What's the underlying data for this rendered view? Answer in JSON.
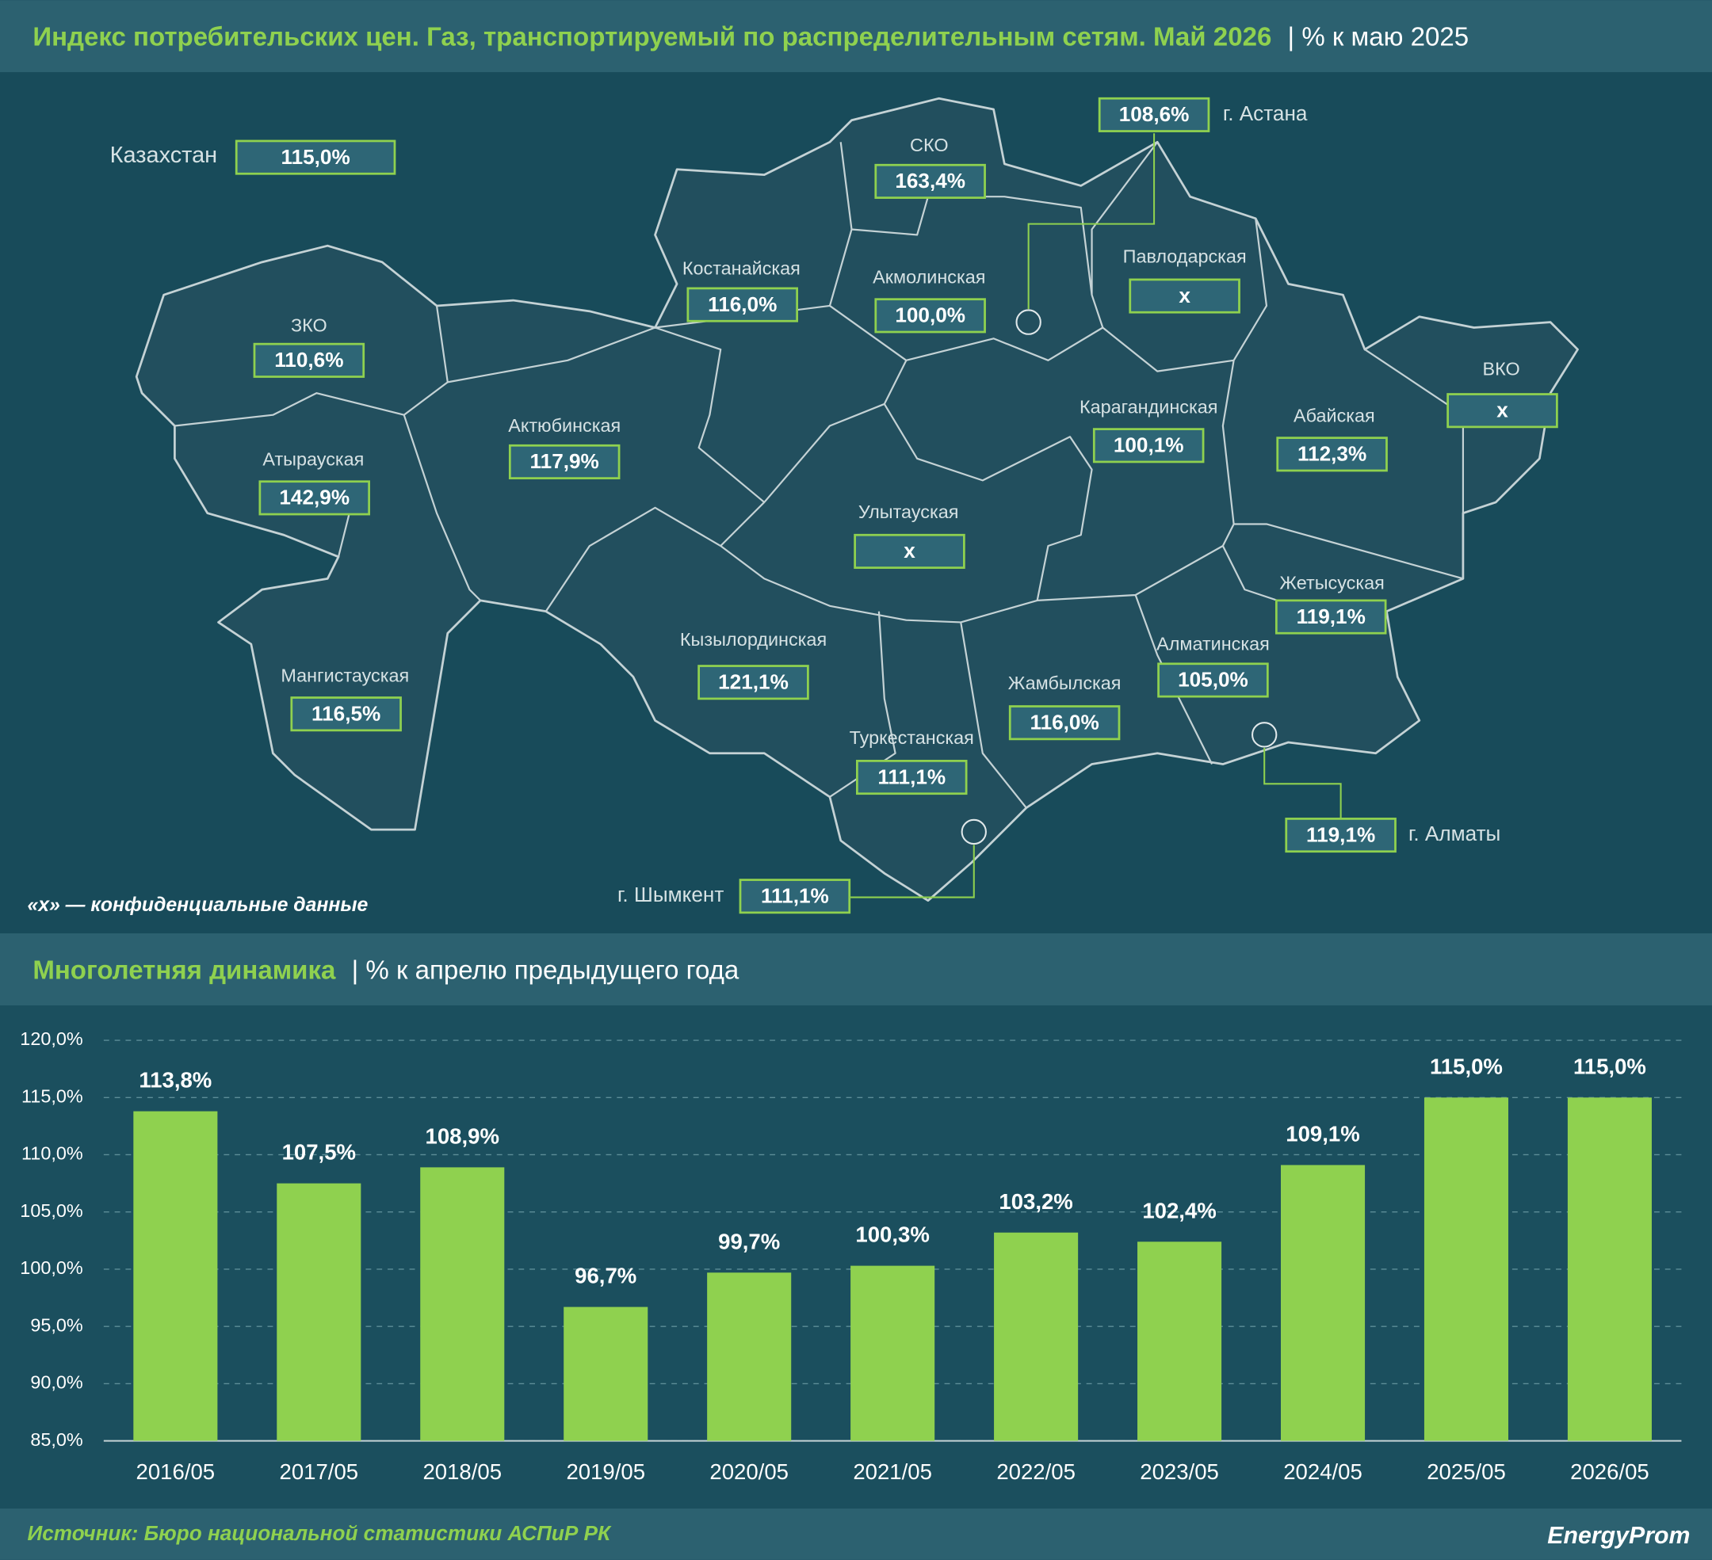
{
  "map": {
    "title": "Индекс потребительских цен. Газ, транспортируемый по распределительным сетям. Май 2026",
    "subtitle": "| % к маю 2025",
    "total": {
      "name": "Казахстан",
      "value": "115,0%"
    },
    "regions": [
      {
        "name": "СКО",
        "value": "163,4%"
      },
      {
        "name": "г. Астана",
        "value": "108,6%"
      },
      {
        "name": "Костанайская",
        "value": "116,0%"
      },
      {
        "name": "Акмолинская",
        "value": "100,0%"
      },
      {
        "name": "Павлодарская",
        "value": "x"
      },
      {
        "name": "ЗКО",
        "value": "110,6%"
      },
      {
        "name": "Актюбинская",
        "value": "117,9%"
      },
      {
        "name": "Атырауская",
        "value": "142,9%"
      },
      {
        "name": "Карагандинская",
        "value": "100,1%"
      },
      {
        "name": "Абайская",
        "value": "112,3%"
      },
      {
        "name": "ВКО",
        "value": "x"
      },
      {
        "name": "Улытауская",
        "value": "x"
      },
      {
        "name": "Жетысуская",
        "value": "119,1%"
      },
      {
        "name": "Кызылординская",
        "value": "121,1%"
      },
      {
        "name": "Мангистауская",
        "value": "116,5%"
      },
      {
        "name": "Алматинская",
        "value": "105,0%"
      },
      {
        "name": "Жамбылская",
        "value": "116,0%"
      },
      {
        "name": "Туркестанская",
        "value": "111,1%"
      },
      {
        "name": "г. Алматы",
        "value": "119,1%"
      },
      {
        "name": "г. Шымкент",
        "value": "111,1%"
      }
    ],
    "note": "«x» — конфиденциальные данные"
  },
  "chart_data": {
    "type": "bar",
    "title": "Многолетняя динамика",
    "subtitle": "| % к апрелю предыдущего года",
    "categories": [
      "2016/05",
      "2017/05",
      "2018/05",
      "2019/05",
      "2020/05",
      "2021/05",
      "2022/05",
      "2023/05",
      "2024/05",
      "2025/05",
      "2026/05"
    ],
    "values": [
      113.8,
      107.5,
      108.9,
      96.7,
      99.7,
      100.3,
      103.2,
      102.4,
      109.1,
      115.0,
      115.0
    ],
    "value_labels": [
      "113,8%",
      "107,5%",
      "108,9%",
      "96,7%",
      "99,7%",
      "100,3%",
      "103,2%",
      "102,4%",
      "109,1%",
      "115,0%",
      "115,0%"
    ],
    "color": "#8fd14f",
    "ylim": [
      85,
      120
    ],
    "yticks": [
      {
        "value": 85,
        "label": "85,0%"
      },
      {
        "value": 90,
        "label": "90,0%"
      },
      {
        "value": 95,
        "label": "95,0%"
      },
      {
        "value": 100,
        "label": "100,0%"
      },
      {
        "value": 105,
        "label": "105,0%"
      },
      {
        "value": 110,
        "label": "110,0%"
      },
      {
        "value": 115,
        "label": "115,0%"
      },
      {
        "value": 120,
        "label": "120,0%"
      }
    ],
    "grid": true
  },
  "footer": {
    "source": "Источник: Бюро национальной статистики АСПиР РК",
    "logo": "EnergyProm"
  }
}
